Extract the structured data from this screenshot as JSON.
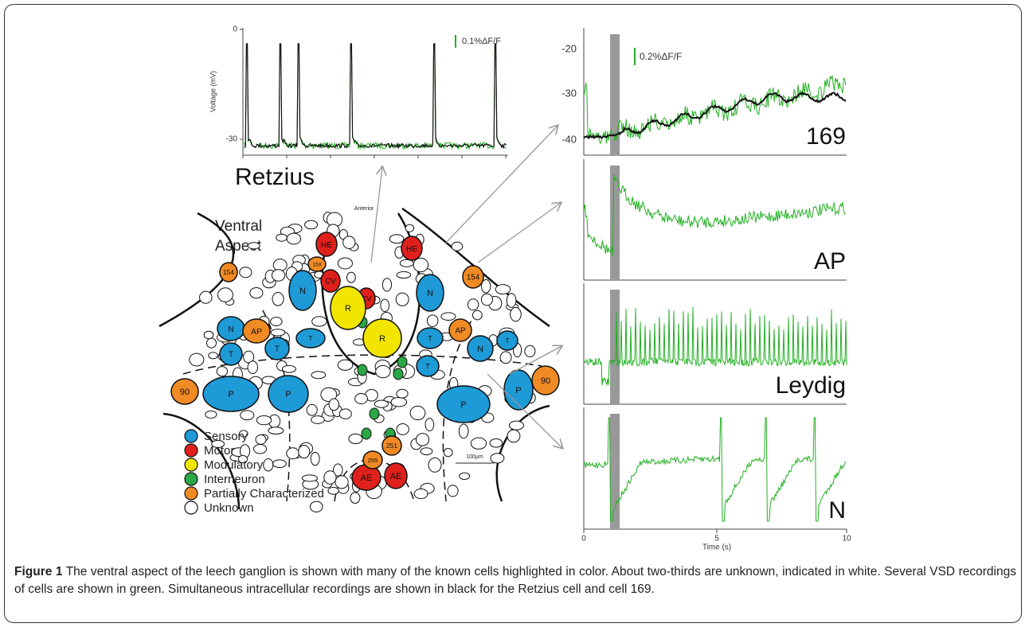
{
  "figure": {
    "retzius": {
      "title": "Retzius",
      "y_label": "Voltage (mV)",
      "yticks": [
        "0",
        "-30"
      ],
      "scale_bar": "0.1%ΔF/F"
    },
    "map": {
      "heading_line1": "Ventral",
      "heading_line2": "Aspect",
      "anterior": "Anterior",
      "scale": "100µm",
      "legend": [
        {
          "label": "Sensory",
          "color": "#1e9ad6",
          "cells": [
            "N",
            "T",
            "N",
            "T",
            "T",
            "P",
            "P",
            "N",
            "T",
            "N",
            "T",
            "T",
            "P",
            "P"
          ]
        },
        {
          "label": "Motor",
          "color": "#e0201c",
          "cells": [
            "HE",
            "HE",
            "CV",
            "CV",
            "AE",
            "AE"
          ]
        },
        {
          "label": "Modulatory",
          "color": "#f2e600",
          "cells": [
            "R",
            "R"
          ]
        },
        {
          "label": "Interneuron",
          "color": "#2aa845",
          "cells": []
        },
        {
          "label": "Partially Characterized",
          "color": "#f08a24",
          "cells": [
            "AP",
            "AP",
            "90",
            "90",
            "153",
            "154",
            "154",
            "251",
            "255"
          ]
        },
        {
          "label": "Unknown",
          "color": "#ffffff",
          "cells": []
        }
      ]
    },
    "traces": {
      "scale_bar": "0.2%ΔF/F",
      "yticks": [
        "-20",
        "-30",
        "-40"
      ],
      "panels": [
        "169",
        "AP",
        "Leydig",
        "N"
      ],
      "xticks": [
        "0",
        "5",
        "10"
      ],
      "x_label": "Time (s)"
    }
  },
  "caption": {
    "label": "Figure 1",
    "text": "The ventral aspect of the leech ganglion is shown with many of the known cells highlighted in color. About two-thirds are unknown, indicated in white. Several VSD recordings of cells are shown in green. Simultaneous intracellular recordings are shown in black for the Retzius cell and cell 169."
  }
}
